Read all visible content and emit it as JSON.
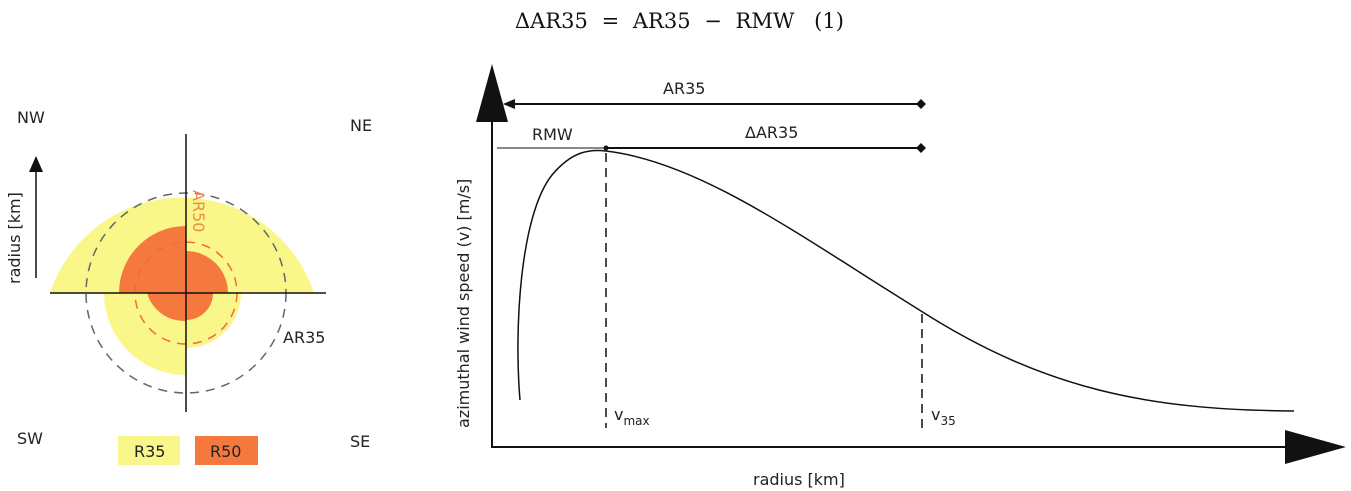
{
  "equation": {
    "lhs": "ΔAR35",
    "op_eq": "=",
    "term1": "AR35",
    "op_minus": "−",
    "term2": "RMW",
    "number": "(1)"
  },
  "left_diagram": {
    "quadrants": {
      "nw": "NW",
      "ne": "NE",
      "sw": "SW",
      "se": "SE"
    },
    "axis_label": "radius [km]",
    "ar50_label": "AR50",
    "ar35_label": "AR35",
    "legend": [
      {
        "label": "R35",
        "color": "#f9f78a"
      },
      {
        "label": "R50",
        "color": "#f5793f"
      }
    ]
  },
  "right_diagram": {
    "y_label": "azimuthal wind speed (v) [m/s]",
    "x_label": "radius [km]",
    "ar35_span_label": "AR35",
    "rmw_label": "RMW",
    "delta_label": "ΔAR35",
    "vmax_label": {
      "base": "v",
      "sub": "max"
    },
    "v35_label": {
      "base": "v",
      "sub": "35"
    }
  },
  "colors": {
    "r35_fill": "#f9f78a",
    "r50_fill": "#f5793f",
    "ar50_text": "#f08a4b",
    "ink": "#111111",
    "dash_gray": "#666666",
    "dash_orange": "#ef6a3f"
  }
}
